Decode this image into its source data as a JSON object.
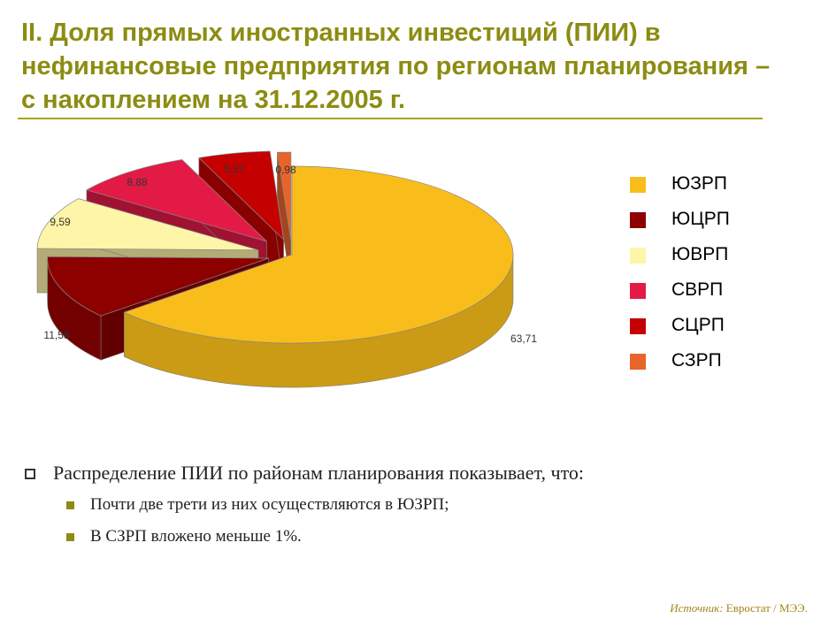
{
  "title": "II. Доля прямых иностранных инвестиций (ПИИ) в\nнефинансовые предприятия по регионам планирования –\nс накоплением на 31.12.2005 г.",
  "chart_data": {
    "type": "pie",
    "title": "",
    "slices": [
      {
        "label": "ЮЗРП",
        "value": 63.71,
        "value_label": "63,71",
        "color": "#f9bd1b"
      },
      {
        "label": "ЮЦРП",
        "value": 11.58,
        "value_label": "11,58",
        "color": "#8c0000"
      },
      {
        "label": "ЮВРП",
        "value": 9.59,
        "value_label": "9,59",
        "color": "#fff5a8"
      },
      {
        "label": "СВРП",
        "value": 8.88,
        "value_label": "8,88",
        "color": "#e41a46"
      },
      {
        "label": "СЦРП",
        "value": 5.27,
        "value_label": "5,27",
        "color": "#c40000"
      },
      {
        "label": "СЗРП",
        "value": 0.98,
        "value_label": "0,98",
        "color": "#e8642a"
      }
    ],
    "legend_position": "right",
    "style": "3d-exploded"
  },
  "legend": {
    "items": [
      {
        "label": "ЮЗРП",
        "color": "#f9bd1b"
      },
      {
        "label": "ЮЦРП",
        "color": "#8c0000"
      },
      {
        "label": "ЮВРП",
        "color": "#fff5a8"
      },
      {
        "label": "СВРП",
        "color": "#e41a46"
      },
      {
        "label": "СЦРП",
        "color": "#c40000"
      },
      {
        "label": "СЗРП",
        "color": "#e8642a"
      }
    ]
  },
  "bullets": {
    "main": "Распределение ПИИ по районам планирования показывает, что:",
    "sub": [
      "Почти две трети из них осуществляются в ЮЗРП;",
      "В СЗРП вложено меньше 1%."
    ]
  },
  "source": {
    "label": "Источник:",
    "text": " Евростат / МЭЭ."
  },
  "colors": {
    "title": "#8c8c12",
    "accent": "#8c8c12",
    "source": "#a2861a"
  }
}
